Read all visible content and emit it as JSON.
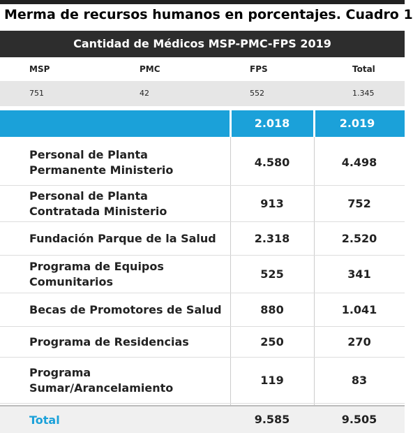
{
  "header": {
    "title": "Merma de recursos humanos en porcentajes. Cuadro 1"
  },
  "table": {
    "caption": "Cantidad de Médicos MSP-PMC-FPS 2019",
    "columns": [
      "MSP",
      "PMC",
      "FPS",
      "Total"
    ],
    "counts": [
      "751",
      "42",
      "552",
      "1.345"
    ],
    "highlight": [
      "2.018",
      "2.019"
    ],
    "rows": [
      {
        "label": [
          "Personal de Planta",
          "Permanente Ministerio"
        ],
        "fps": "4.580",
        "total": "4.498"
      },
      {
        "label": [
          "Personal de Planta",
          "Contratada Ministerio"
        ],
        "fps": "913",
        "total": "752"
      },
      {
        "label": [
          "Fundación Parque de la Salud"
        ],
        "fps": "2.318",
        "total": "2.520"
      },
      {
        "label": [
          "Programa de Equipos",
          "Comunitarios"
        ],
        "fps": "525",
        "total": "341"
      },
      {
        "label": [
          "Becas de Promotores de Salud"
        ],
        "fps": "880",
        "total": "1.041"
      },
      {
        "label": [
          "Programa de Residencias"
        ],
        "fps": "250",
        "total": "270"
      },
      {
        "label": [
          "Programa",
          "Sumar/Arancelamiento"
        ],
        "fps": "119",
        "total": "83"
      }
    ],
    "total": {
      "label": "Total",
      "fps": "9.585",
      "total": "9.505"
    }
  }
}
